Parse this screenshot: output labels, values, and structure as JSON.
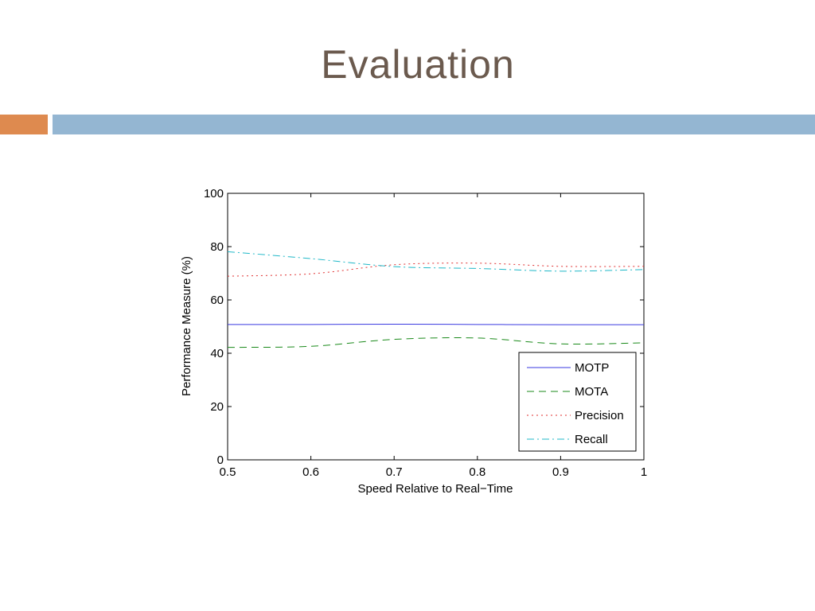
{
  "slide": {
    "title": "Evaluation",
    "accent_orange": "#de8a4f",
    "accent_blue": "#94b6d2",
    "title_color": "#6b5a4e"
  },
  "chart_data": {
    "type": "line",
    "xlabel": "Speed Relative to Real−Time",
    "ylabel": "Performance Measure (%)",
    "xlim": [
      0.5,
      1
    ],
    "ylim": [
      0,
      100
    ],
    "xticks": [
      0.5,
      0.6,
      0.7,
      0.8,
      0.9,
      1
    ],
    "xtick_labels": [
      "0.5",
      "0.6",
      "0.7",
      "0.8",
      "0.9",
      "1"
    ],
    "yticks": [
      0,
      20,
      40,
      60,
      80,
      100
    ],
    "ytick_labels": [
      "0",
      "20",
      "40",
      "60",
      "80",
      "100"
    ],
    "grid": false,
    "legend_position": "bottom-right",
    "x": [
      0.5,
      0.6,
      0.7,
      0.8,
      0.9,
      1
    ],
    "series": [
      {
        "name": "MOTP",
        "values": [
          50.8,
          50.8,
          50.9,
          50.8,
          50.7,
          50.7
        ],
        "color": "#3a3ae0",
        "dash": "solid"
      },
      {
        "name": "MOTA",
        "values": [
          42.2,
          42.6,
          45.2,
          45.7,
          43.5,
          43.9
        ],
        "color": "#1a8a1a",
        "dash": "dashed"
      },
      {
        "name": "Precision",
        "values": [
          68.9,
          69.8,
          73.2,
          73.8,
          72.6,
          72.6
        ],
        "color": "#e03030",
        "dash": "dotted"
      },
      {
        "name": "Recall",
        "values": [
          78.1,
          75.5,
          72.5,
          71.8,
          70.8,
          71.4
        ],
        "color": "#20b8c8",
        "dash": "dashdot"
      }
    ]
  }
}
